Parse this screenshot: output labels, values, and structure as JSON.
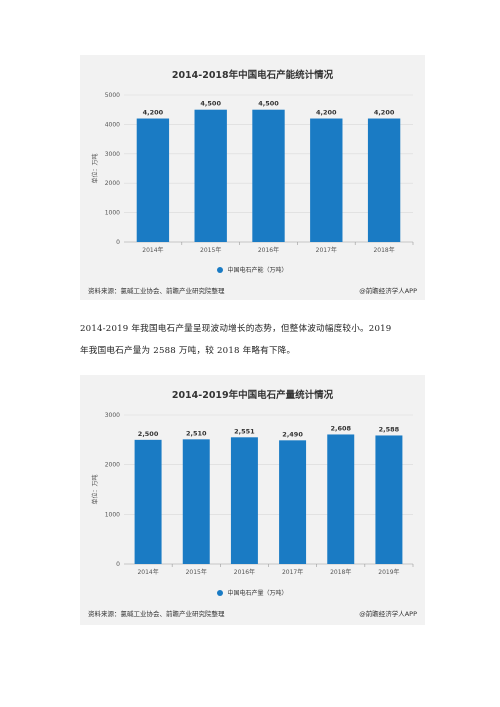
{
  "chart_data": [
    {
      "type": "bar",
      "title": "2014-2018年中国电石产能统计情况",
      "categories": [
        "2014年",
        "2015年",
        "2016年",
        "2017年",
        "2018年"
      ],
      "series": [
        {
          "name": "中国电石产能（万吨）",
          "values": [
            4200,
            4500,
            4500,
            4200,
            4200
          ]
        }
      ],
      "data_labels": [
        "4,200",
        "4,500",
        "4,500",
        "4,200",
        "4,200"
      ],
      "ylabel": "单位：万吨",
      "ylim": [
        0,
        5000
      ],
      "yticks": [
        0,
        1000,
        2000,
        3000,
        4000,
        5000
      ],
      "grid": true,
      "bar_color": "#1a7bc4",
      "legend_position": "bottom"
    },
    {
      "type": "bar",
      "title": "2014-2019年中国电石产量统计情况",
      "categories": [
        "2014年",
        "2015年",
        "2016年",
        "2017年",
        "2018年",
        "2019年"
      ],
      "series": [
        {
          "name": "中国电石产量（万吨）",
          "values": [
            2500,
            2510,
            2551,
            2490,
            2608,
            2588
          ]
        }
      ],
      "data_labels": [
        "2,500",
        "2,510",
        "2,551",
        "2,490",
        "2,608",
        "2,588"
      ],
      "ylabel": "单位：万吨",
      "ylim": [
        0,
        3000
      ],
      "yticks": [
        0,
        1000,
        2000,
        3000
      ],
      "grid": true,
      "bar_color": "#1a7bc4",
      "legend_position": "bottom"
    }
  ],
  "charts": [
    {
      "source_left": "资料来源：氯碱工业协会、前瞻产业研究院整理",
      "source_right": "@前瞻经济学人APP"
    },
    {
      "source_left": "资料来源：氯碱工业协会、前瞻产业研究院整理",
      "source_right": "@前瞻经济学人APP"
    }
  ],
  "paragraph": {
    "line1": "2014-2019 年我国电石产量呈现波动增长的态势，但整体波动幅度较小。2019",
    "line2": "年我国电石产量为 2588 万吨，较 2018 年略有下降。"
  },
  "colors": {
    "bar": "#1a7bc4",
    "card_bg": "#f2f2f2"
  }
}
